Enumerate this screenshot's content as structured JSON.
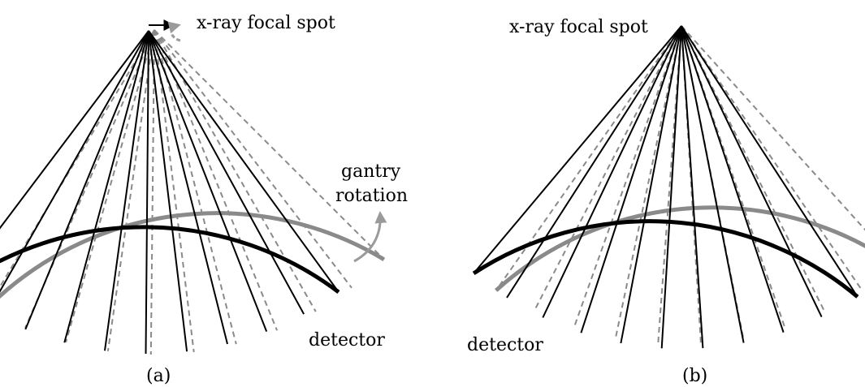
{
  "panels": [
    {
      "id": "a",
      "caption": "(a)",
      "focal_label": "x-ray focal spot",
      "detector_label": "detector",
      "rotation_label_line1": "gantry",
      "rotation_label_line2": "rotation",
      "focal_shift_indicator": "right-arrow",
      "colors": {
        "solid": "#000000",
        "dashed": "#8a8a8a",
        "arrow": "#9a9a9a"
      }
    },
    {
      "id": "b",
      "caption": "(b)",
      "focal_label": "x-ray focal spot",
      "detector_label": "detector",
      "colors": {
        "solid": "#000000",
        "dashed": "#8a8a8a"
      }
    }
  ]
}
